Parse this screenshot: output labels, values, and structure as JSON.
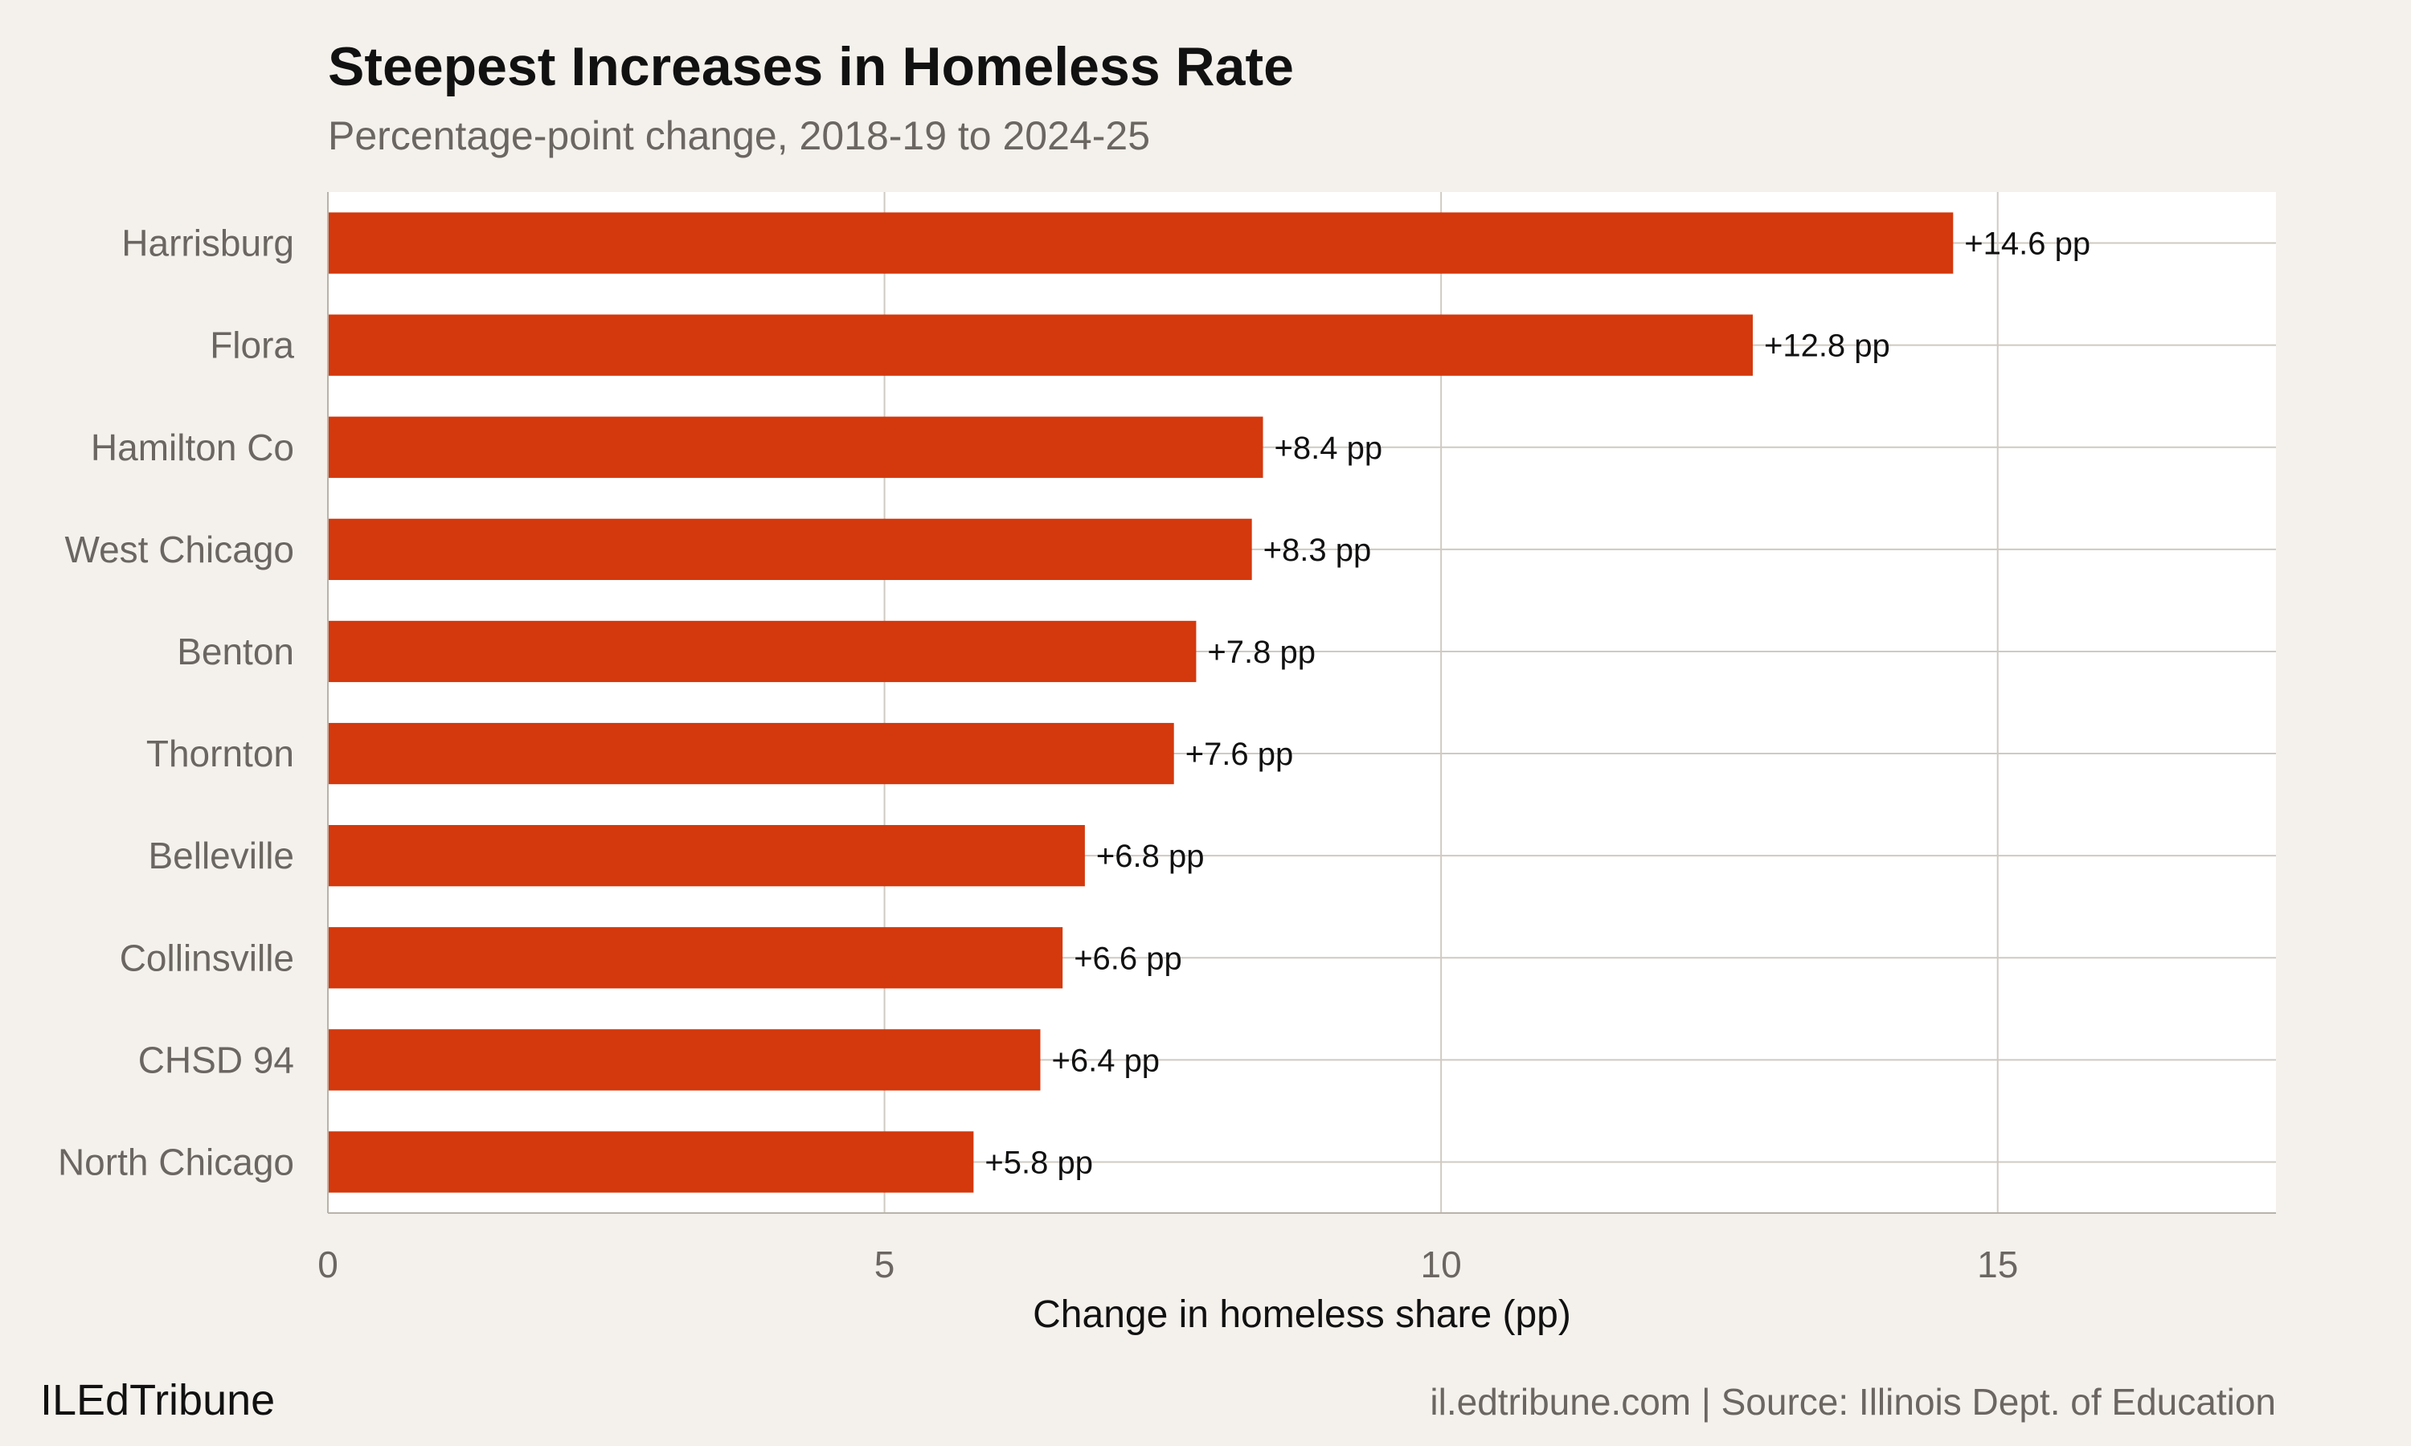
{
  "chart_data": {
    "type": "bar",
    "orientation": "horizontal",
    "title": "Steepest Increases in Homeless Rate",
    "subtitle": "Percentage-point change, 2018-19 to 2024-25",
    "categories": [
      "Harrisburg",
      "Flora",
      "Hamilton Co",
      "West Chicago",
      "Benton",
      "Thornton",
      "Belleville",
      "Collinsville",
      "CHSD 94",
      "North Chicago"
    ],
    "values": [
      14.6,
      12.8,
      8.4,
      8.3,
      7.8,
      7.6,
      6.8,
      6.6,
      6.4,
      5.8
    ],
    "data_labels": [
      "+14.6 pp",
      "+12.8 pp",
      "+8.4 pp",
      "+8.3 pp",
      "+7.8 pp",
      "+7.6 pp",
      "+6.8 pp",
      "+6.6 pp",
      "+6.4 pp",
      "+5.8 pp"
    ],
    "xlabel": "Change in homeless share (pp)",
    "ylabel": "",
    "xlim": [
      0,
      17.5
    ],
    "xticks": [
      0,
      5,
      10,
      15
    ],
    "grid": true,
    "bar_color": "#d4380d"
  },
  "footer": {
    "brand": "ILEdTribune",
    "source": "il.edtribune.com | Source: Illinois Dept. of Education"
  }
}
